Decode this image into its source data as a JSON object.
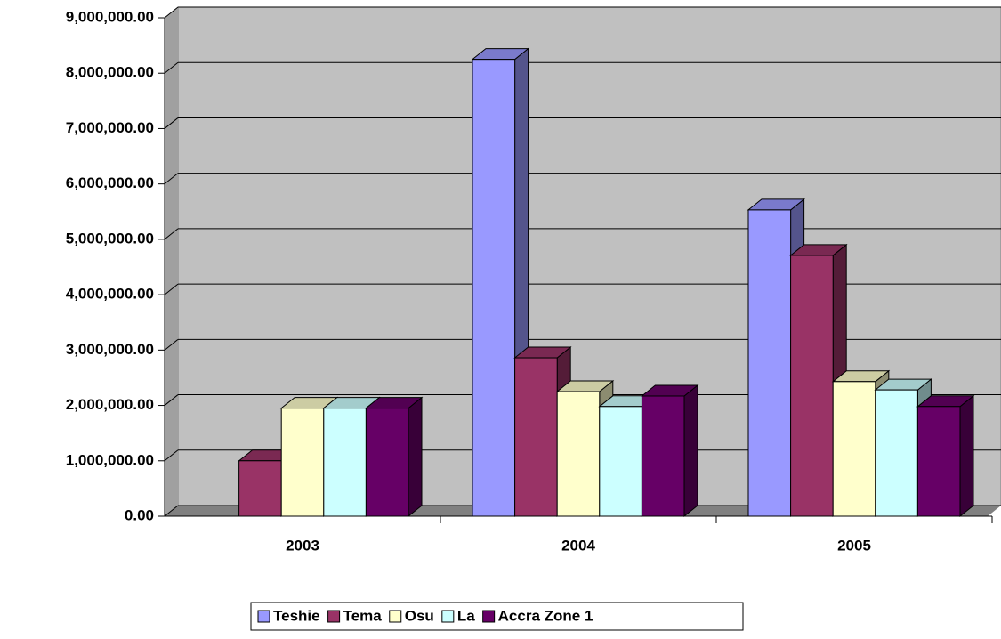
{
  "chart_data": {
    "type": "bar3d",
    "categories": [
      "2003",
      "2004",
      "2005"
    ],
    "series": [
      {
        "name": "Teshie",
        "color": "#9999ff",
        "values": [
          0,
          8250000,
          5530000
        ]
      },
      {
        "name": "Tema",
        "color": "#993366",
        "values": [
          1000000,
          2860000,
          4710000
        ]
      },
      {
        "name": "Osu",
        "color": "#ffffcc",
        "values": [
          1950000,
          2250000,
          2430000
        ]
      },
      {
        "name": "La",
        "color": "#ccffff",
        "values": [
          1950000,
          1980000,
          2280000
        ]
      },
      {
        "name": "Accra Zone 1",
        "color": "#660066",
        "values": [
          1950000,
          2170000,
          1980000
        ]
      }
    ],
    "ylim": [
      0,
      9000000
    ],
    "yticks": [
      {
        "value": 0,
        "label": "0.00"
      },
      {
        "value": 1000000,
        "label": "1,000,000.00"
      },
      {
        "value": 2000000,
        "label": "2,000,000.00"
      },
      {
        "value": 3000000,
        "label": "3,000,000.00"
      },
      {
        "value": 4000000,
        "label": "4,000,000.00"
      },
      {
        "value": 5000000,
        "label": "5,000,000.00"
      },
      {
        "value": 6000000,
        "label": "6,000,000.00"
      },
      {
        "value": 7000000,
        "label": "7,000,000.00"
      },
      {
        "value": 8000000,
        "label": "8,000,000.00"
      },
      {
        "value": 9000000,
        "label": "9,000,000.00"
      }
    ],
    "grid": true,
    "legend": "bottom"
  }
}
